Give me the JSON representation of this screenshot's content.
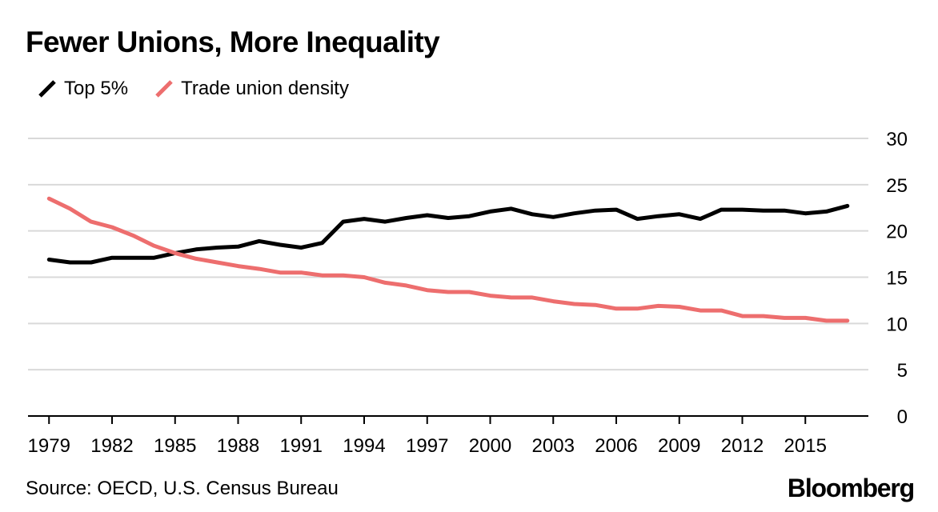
{
  "title": "Fewer Unions, More Inequality",
  "source": "Source: OECD, U.S. Census Bureau",
  "brand": "Bloomberg",
  "colors": {
    "top5": "#000000",
    "union": "#ed6e6e",
    "grid": "#d9d9d9",
    "axis": "#000000"
  },
  "chart_data": {
    "type": "line",
    "title": "Fewer Unions, More Inequality",
    "xlabel": "",
    "ylabel": "",
    "x": [
      1979,
      1980,
      1981,
      1982,
      1983,
      1984,
      1985,
      1986,
      1987,
      1988,
      1989,
      1990,
      1991,
      1992,
      1993,
      1994,
      1995,
      1996,
      1997,
      1998,
      1999,
      2000,
      2001,
      2002,
      2003,
      2004,
      2005,
      2006,
      2007,
      2008,
      2009,
      2010,
      2011,
      2012,
      2013,
      2014,
      2015,
      2016,
      2017
    ],
    "xticks": [
      "1979",
      "1982",
      "1985",
      "1988",
      "1991",
      "1994",
      "1997",
      "2000",
      "2003",
      "2006",
      "2009",
      "2012",
      "2015"
    ],
    "yticks": [
      "0",
      "5",
      "10",
      "15",
      "20",
      "25",
      "30"
    ],
    "ylim": [
      0,
      30
    ],
    "xlim": [
      1978,
      2018
    ],
    "grid": true,
    "legend_position": "top-left",
    "series": [
      {
        "name": "Top 5%",
        "color_key": "top5",
        "values": [
          16.9,
          16.6,
          16.6,
          17.1,
          17.1,
          17.1,
          17.6,
          18.0,
          18.2,
          18.3,
          18.9,
          18.5,
          18.2,
          18.7,
          21.0,
          21.3,
          21.0,
          21.4,
          21.7,
          21.4,
          21.6,
          22.1,
          22.4,
          21.8,
          21.5,
          21.9,
          22.2,
          22.3,
          21.3,
          21.6,
          21.8,
          21.3,
          22.3,
          22.3,
          22.2,
          22.2,
          21.9,
          22.1,
          22.7
        ]
      },
      {
        "name": "Trade union density",
        "color_key": "union",
        "values": [
          23.5,
          22.4,
          21.0,
          20.4,
          19.5,
          18.4,
          17.6,
          17.0,
          16.6,
          16.2,
          15.9,
          15.5,
          15.5,
          15.2,
          15.2,
          15.0,
          14.4,
          14.1,
          13.6,
          13.4,
          13.4,
          13.0,
          12.8,
          12.8,
          12.4,
          12.1,
          12.0,
          11.6,
          11.6,
          11.9,
          11.8,
          11.4,
          11.4,
          10.8,
          10.8,
          10.6,
          10.6,
          10.3,
          10.3
        ]
      }
    ]
  }
}
